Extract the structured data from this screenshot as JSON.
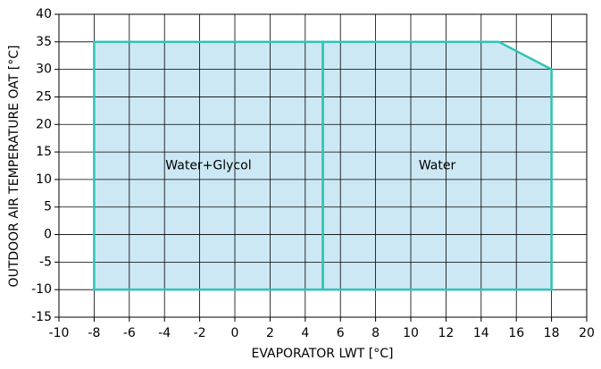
{
  "chart_data": {
    "type": "area",
    "xlabel": "EVAPORATOR LWT [°C]",
    "ylabel": "OUTDOOR AIR TEMPERATURE OAT [°C]",
    "xlim": [
      -10,
      20
    ],
    "xticks": [
      -10,
      -8,
      -6,
      -4,
      -2,
      0,
      2,
      4,
      6,
      8,
      10,
      12,
      14,
      16,
      18,
      20
    ],
    "ylim": [
      -15,
      40
    ],
    "yticks": [
      -15,
      -10,
      -5,
      0,
      5,
      10,
      15,
      20,
      25,
      30,
      35,
      40
    ],
    "grid": true,
    "series": [
      {
        "name": "Water+Glycol",
        "color": "#2ec4b6",
        "fill": "#cce8f4",
        "x": [
          -8,
          -8,
          5,
          5
        ],
        "values": [
          -10,
          35,
          35,
          -10
        ]
      },
      {
        "name": "Water",
        "color": "#2ec4b6",
        "fill": "#cce8f4",
        "x": [
          5,
          5,
          15,
          18,
          18
        ],
        "values": [
          -10,
          35,
          35,
          30,
          -10
        ]
      }
    ]
  }
}
